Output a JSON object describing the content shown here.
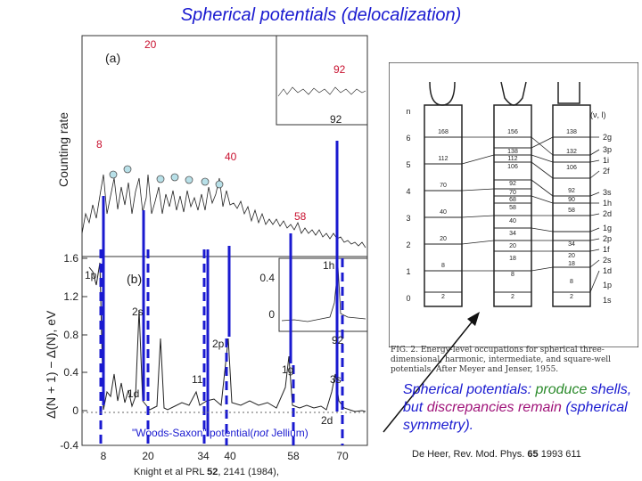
{
  "title": "Spherical potentials (delocalization)",
  "top_panel": {
    "label": "(a)",
    "ylabel": "Counting rate",
    "peak_labels": [
      "20",
      "92",
      "8",
      "40",
      "58"
    ],
    "inset_label": "92"
  },
  "bottom_panel": {
    "label": "(b)",
    "ylabel": "Δ(N + 1) − Δ(N), eV",
    "yticks": [
      "1.6",
      "1.2",
      "0.8",
      "0.4",
      "0",
      "-0.4"
    ],
    "xticks": [
      "8",
      "20",
      "34",
      "40",
      "58",
      "70"
    ],
    "shell_labels": [
      "1p",
      "2s",
      "1d",
      "2p",
      "1g",
      "11",
      "3s",
      "2d"
    ],
    "inset": {
      "label": "1h",
      "yticks": [
        "0.4",
        "0"
      ],
      "xlabel": "92"
    },
    "potential_label_prefix": "\"Woods-Saxon\" potential(",
    "potential_label_italic": "not",
    "potential_label_suffix": " Jellium)"
  },
  "energy_diagram": {
    "header": "(ν, l)",
    "n_labels": [
      "6",
      "5",
      "4",
      "3",
      "2",
      "1",
      "0"
    ],
    "col1": [
      "168",
      "112",
      "70",
      "40",
      "20",
      "8",
      "2"
    ],
    "col2": [
      "156",
      "138",
      "112",
      "106",
      "92",
      "70",
      "68",
      "58",
      "40",
      "34",
      "20",
      "18",
      "8",
      "2"
    ],
    "col3": [
      "138",
      "132",
      "106",
      "92",
      "90",
      "58",
      "34",
      "20",
      "18",
      "8",
      "2"
    ],
    "levels": [
      "2g",
      "3p",
      "1i",
      "2f",
      "3s",
      "1h",
      "2d",
      "1g",
      "2p",
      "1f",
      "2s",
      "1d",
      "1p",
      "1s"
    ],
    "caption": "FIG. 2. Energy-level occupations for spherical three-dimensional, harmonic, intermediate, and square-well potentials. After Meyer and Jenser, 1955."
  },
  "conclusion": {
    "p1": "Spherical potentials",
    "p2": ": ",
    "p3": "produce",
    "p4": " shells, but ",
    "p5": "discrepancies remain",
    "p6": " (spherical symmetry)."
  },
  "references": {
    "deheer_prefix": "De Heer, Rev. Mod. Phys. ",
    "deheer_vol": "65",
    "deheer_suffix": " 1993 611",
    "knight_prefix": "Knight et al PRL ",
    "knight_vol": "52",
    "knight_suffix": ", 2141 (1984),"
  },
  "colors": {
    "accent_blue": "#1a1ad0",
    "title_blue": "#1a1ad0",
    "red_label": "#c8102e",
    "green": "#2a8a2a",
    "purple": "#a0147a"
  }
}
